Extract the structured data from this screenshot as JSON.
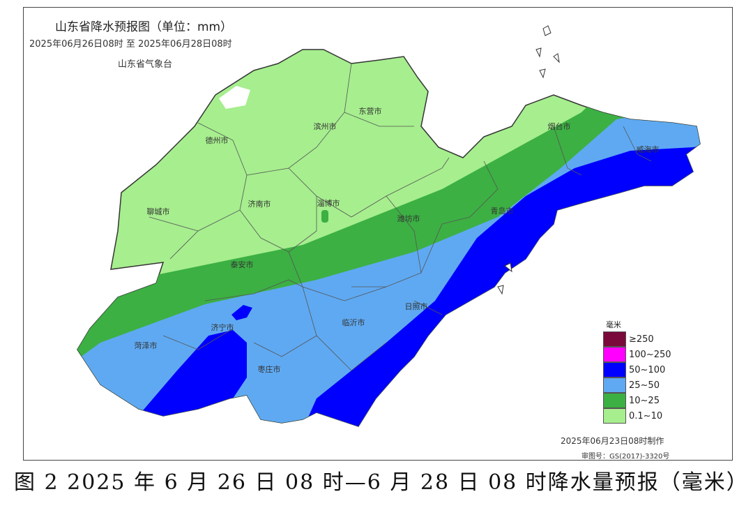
{
  "title": "山东省降水预报图（单位：mm）",
  "period": "2025年06月26日08时  至  2025年06月28日08时",
  "agency": "山东省气象台",
  "cities": [
    {
      "name": "滨州市"
    },
    {
      "name": "东营市"
    },
    {
      "name": "德州市"
    },
    {
      "name": "烟台市"
    },
    {
      "name": "威海市"
    },
    {
      "name": "聊城市"
    },
    {
      "name": "济南市"
    },
    {
      "name": "淄博市"
    },
    {
      "name": "潍坊市"
    },
    {
      "name": "青岛市"
    },
    {
      "name": "泰安市"
    },
    {
      "name": "日照市"
    },
    {
      "name": "济宁市"
    },
    {
      "name": "临沂市"
    },
    {
      "name": "菏泽市"
    },
    {
      "name": "枣庄市"
    }
  ],
  "legend": {
    "unit": "毫米",
    "items": [
      {
        "label": "≥250",
        "color": "#7a0a3c"
      },
      {
        "label": "100~250",
        "color": "#ff00ff"
      },
      {
        "label": "50~100",
        "color": "#0000ff"
      },
      {
        "label": "25~50",
        "color": "#5fa9f2"
      },
      {
        "label": "10~25",
        "color": "#3cb043"
      },
      {
        "label": "0.1~10",
        "color": "#a6ee8e"
      }
    ]
  },
  "made_time": "2025年06月23日08时制作",
  "approval_no": "审图号：GS(2017)-3320号",
  "caption": "图 2 2025 年 6 月 26 日 08 时—6 月 28 日 08 时降水量预报（毫米）"
}
